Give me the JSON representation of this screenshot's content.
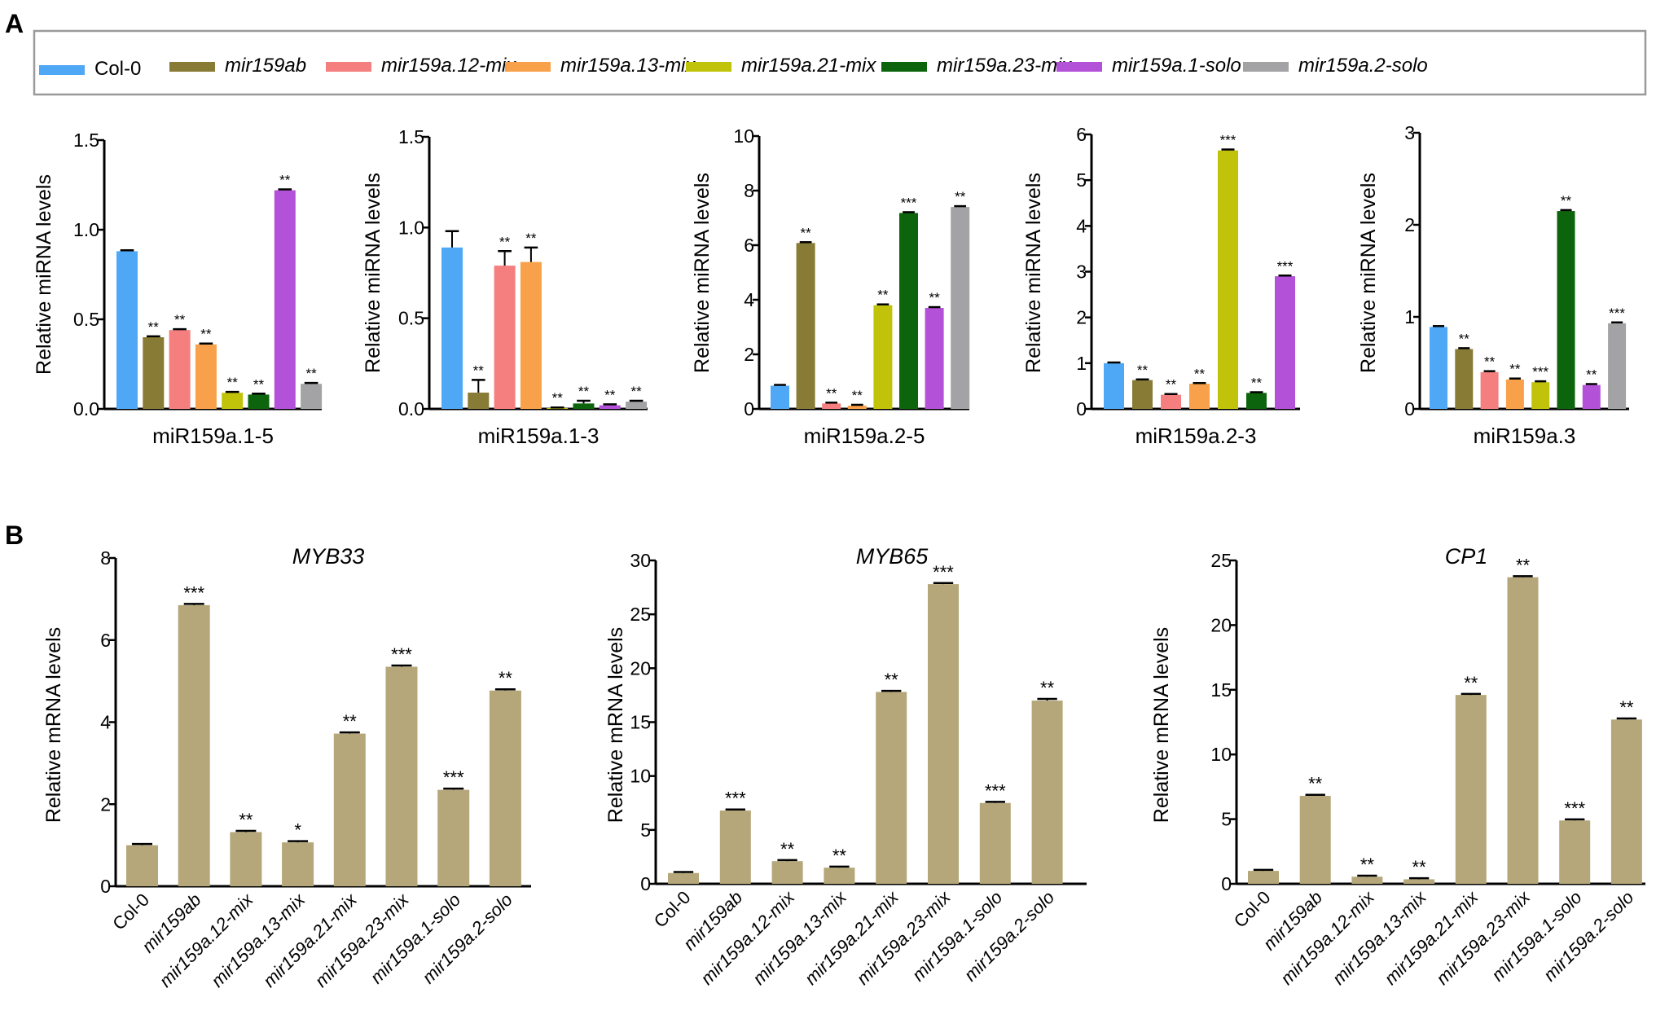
{
  "panel_labels": {
    "a": "A",
    "b": "B"
  },
  "legend": [
    {
      "label": "Col-0",
      "color": "#4fa8f5",
      "italic": false
    },
    {
      "label": "mir159ab",
      "color": "#877b35",
      "italic": true
    },
    {
      "label": "mir159a.12-mix",
      "color": "#f47f7e",
      "italic": true
    },
    {
      "label": "mir159a.13-mix",
      "color": "#f8a14a",
      "italic": true
    },
    {
      "label": "mir159a.21-mix",
      "color": "#c0c30a",
      "italic": true
    },
    {
      "label": "mir159a.23-mix",
      "color": "#0c650c",
      "italic": true
    },
    {
      "label": "mir159a.1-solo",
      "color": "#b351d9",
      "italic": true
    },
    {
      "label": "mir159a.2-solo",
      "color": "#a3a3a6",
      "italic": true
    }
  ],
  "chart_data": [
    {
      "type": "bar",
      "panel": "A",
      "title": "",
      "xlabel": "miR159a.1-5",
      "ylabel": "Relative miRNA levels",
      "ylim": [
        0,
        1.5
      ],
      "yticks": [
        0.0,
        0.5,
        1.0,
        1.5
      ],
      "ytick_labels": [
        "0.0",
        "0.5",
        "1.0",
        "1.5"
      ],
      "categories": [
        "Col-0",
        "mir159ab",
        "mir159a.12-mix",
        "mir159a.13-mix",
        "mir159a.21-mix",
        "mir159a.23-mix",
        "mir159a.1-solo",
        "mir159a.2-solo"
      ],
      "values": [
        0.88,
        0.4,
        0.44,
        0.36,
        0.09,
        0.08,
        1.22,
        0.14
      ],
      "errors": [
        0.005,
        0.005,
        0.005,
        0.005,
        0.005,
        0.005,
        0.005,
        0.005
      ],
      "significance": [
        "",
        "**",
        "**",
        "**",
        "**",
        "**",
        "**",
        "**"
      ]
    },
    {
      "type": "bar",
      "panel": "A",
      "title": "",
      "xlabel": "miR159a.1-3",
      "ylabel": "Relative miRNA levels",
      "ylim": [
        0,
        1.5
      ],
      "yticks": [
        0.0,
        0.5,
        1.0,
        1.5
      ],
      "ytick_labels": [
        "0.0",
        "0.5",
        "1.0",
        "1.5"
      ],
      "categories": [
        "Col-0",
        "mir159ab",
        "mir159a.12-mix",
        "mir159a.13-mix",
        "mir159a.21-mix",
        "mir159a.23-mix",
        "mir159a.1-solo",
        "mir159a.2-solo"
      ],
      "values": [
        0.89,
        0.09,
        0.79,
        0.81,
        0.005,
        0.03,
        0.02,
        0.04
      ],
      "errors": [
        0.09,
        0.07,
        0.08,
        0.08,
        0.003,
        0.015,
        0.005,
        0.005
      ],
      "significance": [
        "",
        "**",
        "**",
        "**",
        "**",
        "**",
        "**",
        "**"
      ]
    },
    {
      "type": "bar",
      "panel": "A",
      "title": "",
      "xlabel": "miR159a.2-5",
      "ylabel": "Relative miRNA levels",
      "ylim": [
        0,
        10
      ],
      "yticks": [
        0,
        2,
        4,
        6,
        8,
        10
      ],
      "ytick_labels": [
        "0",
        "2",
        "4",
        "6",
        "8",
        "10"
      ],
      "categories": [
        "Col-0",
        "mir159ab",
        "mir159a.12-mix",
        "mir159a.13-mix",
        "mir159a.21-mix",
        "mir159a.23-mix",
        "mir159a.1-solo",
        "mir159a.2-solo"
      ],
      "values": [
        0.85,
        6.08,
        0.2,
        0.12,
        3.8,
        7.18,
        3.7,
        7.4
      ],
      "errors": [
        0.03,
        0.03,
        0.03,
        0.03,
        0.03,
        0.03,
        0.03,
        0.03
      ],
      "significance": [
        "",
        "**",
        "**",
        "**",
        "**",
        "***",
        "**",
        "**"
      ]
    },
    {
      "type": "bar",
      "panel": "A",
      "title": "",
      "xlabel": "miR159a.2-3",
      "ylabel": "Relative miRNA levels",
      "ylim": [
        0,
        6
      ],
      "yticks": [
        0,
        1,
        2,
        3,
        4,
        5,
        6
      ],
      "ytick_labels": [
        "0",
        "1",
        "2",
        "3",
        "4",
        "5",
        "6"
      ],
      "categories": [
        "Col-0",
        "mir159ab",
        "mir159a.12-mix",
        "mir159a.13-mix",
        "mir159a.21-mix",
        "mir159a.23-mix",
        "mir159a.1-solo",
        "mir159a.2-solo"
      ],
      "values": [
        1.0,
        0.63,
        0.31,
        0.55,
        5.65,
        0.35,
        2.9,
        null
      ],
      "errors": [
        0.015,
        0.015,
        0.015,
        0.015,
        0.02,
        0.015,
        0.015,
        null
      ],
      "significance": [
        "",
        "**",
        "**",
        "**",
        "***",
        "**",
        "***",
        ""
      ]
    },
    {
      "type": "bar",
      "panel": "A",
      "title": "",
      "xlabel": "miR159a.3",
      "ylabel": "Relative miRNA levels",
      "ylim": [
        0,
        3
      ],
      "yticks": [
        0,
        1,
        2,
        3
      ],
      "ytick_labels": [
        "0",
        "1",
        "2",
        "3"
      ],
      "categories": [
        "Col-0",
        "mir159ab",
        "mir159a.12-mix",
        "mir159a.13-mix",
        "mir159a.21-mix",
        "mir159a.23-mix",
        "mir159a.1-solo",
        "mir159a.2-solo"
      ],
      "values": [
        0.89,
        0.65,
        0.4,
        0.32,
        0.29,
        2.15,
        0.26,
        0.93
      ],
      "errors": [
        0.01,
        0.01,
        0.01,
        0.01,
        0.01,
        0.01,
        0.01,
        0.01
      ],
      "significance": [
        "",
        "**",
        "**",
        "**",
        "***",
        "**",
        "**",
        "***"
      ]
    },
    {
      "type": "bar",
      "panel": "B",
      "title": "MYB33",
      "xlabel": "",
      "ylabel": "Relative mRNA levels",
      "ylim": [
        0,
        8
      ],
      "yticks": [
        0,
        2,
        4,
        6,
        8
      ],
      "ytick_labels": [
        "0",
        "2",
        "4",
        "6",
        "8"
      ],
      "categories": [
        "Col-0",
        "mir159ab",
        "mir159a.12-mix",
        "mir159a.13-mix",
        "mir159a.21-mix",
        "mir159a.23-mix",
        "mir159a.1-solo",
        "mir159a.2-solo"
      ],
      "values": [
        1.0,
        6.85,
        1.32,
        1.07,
        3.72,
        5.35,
        2.35,
        4.77
      ],
      "errors": [
        0.03,
        0.03,
        0.03,
        0.03,
        0.03,
        0.03,
        0.03,
        0.03
      ],
      "significance": [
        "",
        "***",
        "**",
        "*",
        "**",
        "***",
        "***",
        "**"
      ]
    },
    {
      "type": "bar",
      "panel": "B",
      "title": "MYB65",
      "xlabel": "",
      "ylabel": "Relative mRNA levels",
      "ylim": [
        0,
        30
      ],
      "yticks": [
        0,
        5,
        10,
        15,
        20,
        25,
        30
      ],
      "ytick_labels": [
        "0",
        "5",
        "10",
        "15",
        "20",
        "25",
        "30"
      ],
      "categories": [
        "Col-0",
        "mir159ab",
        "mir159a.12-mix",
        "mir159a.13-mix",
        "mir159a.21-mix",
        "mir159a.23-mix",
        "mir159a.1-solo",
        "mir159a.2-solo"
      ],
      "values": [
        1.0,
        6.8,
        2.1,
        1.5,
        17.8,
        27.8,
        7.5,
        17.0
      ],
      "errors": [
        0.1,
        0.1,
        0.1,
        0.1,
        0.1,
        0.1,
        0.1,
        0.15
      ],
      "significance": [
        "",
        "***",
        "**",
        "**",
        "**",
        "***",
        "***",
        "**"
      ]
    },
    {
      "type": "bar",
      "panel": "B",
      "title": "CP1",
      "xlabel": "",
      "ylabel": "Relative mRNA levels",
      "ylim": [
        0,
        25
      ],
      "yticks": [
        0,
        5,
        10,
        15,
        20,
        25
      ],
      "ytick_labels": [
        "0",
        "5",
        "10",
        "15",
        "20",
        "25"
      ],
      "categories": [
        "Col-0",
        "mir159ab",
        "mir159a.12-mix",
        "mir159a.13-mix",
        "mir159a.21-mix",
        "mir159a.23-mix",
        "mir159a.1-solo",
        "mir159a.2-solo"
      ],
      "values": [
        1.0,
        6.8,
        0.55,
        0.35,
        14.6,
        23.7,
        4.9,
        12.7
      ],
      "errors": [
        0.08,
        0.08,
        0.08,
        0.08,
        0.08,
        0.08,
        0.08,
        0.08
      ],
      "significance": [
        "",
        "**",
        "**",
        "**",
        "**",
        "**",
        "***",
        "**"
      ]
    }
  ],
  "colors": {
    "panel_b_bar": "#b5a779",
    "axis": "#000000",
    "legend_border": "#9a9a9a"
  }
}
